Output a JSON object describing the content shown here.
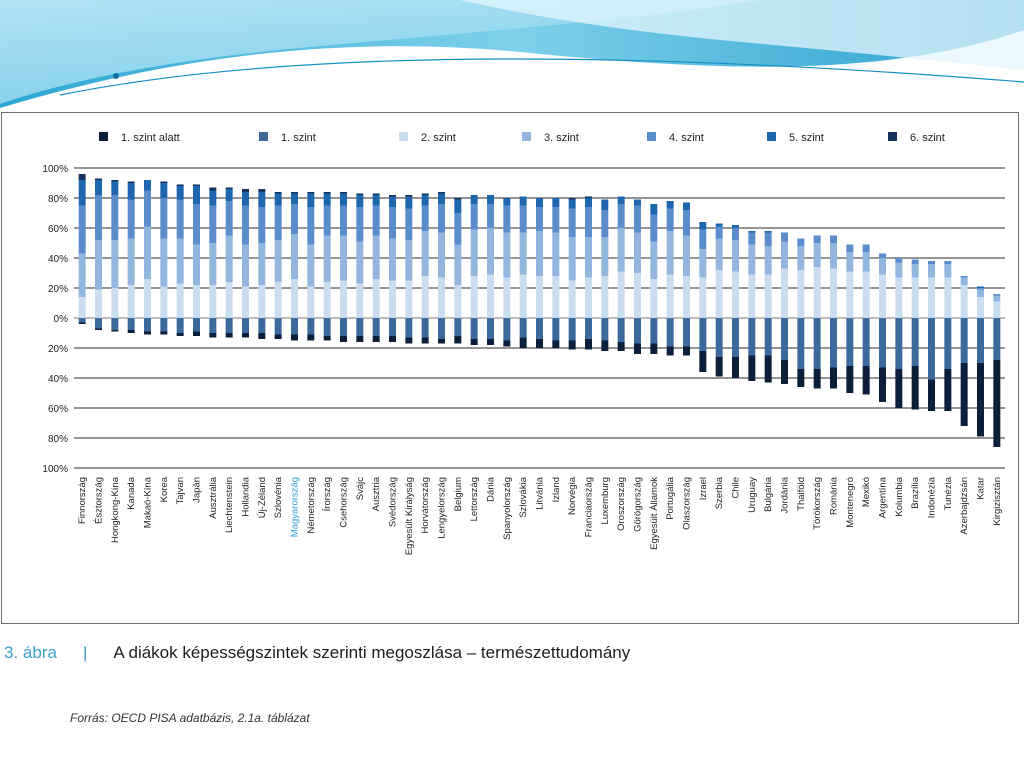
{
  "caption": {
    "number": "3. ábra",
    "separator": "|",
    "title": "A diákok képességszintek szerinti megoszlása – természettudomány"
  },
  "source": "Forrás: OECD PISA adatbázis, 2.1a. táblázat",
  "colors": {
    "below1": "#0c1f3a",
    "level1": "#3d6a9c",
    "level2": "#c9dcf0",
    "level3": "#93b6df",
    "level4": "#5b8ccb",
    "level5": "#1e66ae",
    "level6": "#15325c",
    "highlight_label": "#2a9fd6",
    "caption_accent": "#3aa0c8"
  },
  "chart_data": {
    "type": "bar",
    "stacked": "diverging",
    "legend_position": "top",
    "legend": [
      "1. szint alatt",
      "1. szint",
      "2. szint",
      "3. szint",
      "4. szint",
      "5. szint",
      "6. szint"
    ],
    "y_tick_labels": [
      "100%",
      "80%",
      "60%",
      "40%",
      "20%",
      "0%",
      "20%",
      "40%",
      "60%",
      "80%",
      "100%"
    ],
    "ylim": [
      -100,
      100
    ],
    "grid": true,
    "highlight_category": "Magyarország",
    "categories": [
      "Finnország",
      "Észtország",
      "Hongkong-Kína",
      "Kanada",
      "Makaó-Kína",
      "Korea",
      "Tajvan",
      "Japán",
      "Ausztrália",
      "Liechtenstein",
      "Hollandia",
      "Új-Zéland",
      "Szlovénia",
      "Magyarország",
      "Németország",
      "Írország",
      "Csehország",
      "Svájc",
      "Ausztria",
      "Svédország",
      "Egyesült Királyság",
      "Horvátország",
      "Lengyelország",
      "Belgium",
      "Lettország",
      "Dánia",
      "Spanyolország",
      "Szlovákia",
      "Litvánia",
      "Izland",
      "Norvégia",
      "Franciaország",
      "Luxemburg",
      "Oroszország",
      "Görögország",
      "Egyesült Államok",
      "Portugália",
      "Olaszország",
      "Izrael",
      "Szerbia",
      "Chile",
      "Uruguay",
      "Bulgária",
      "Jordánia",
      "Thaiföld",
      "Törökország",
      "Románia",
      "Montenegró",
      "Mexikó",
      "Argentína",
      "Kolumbia",
      "Brazília",
      "Indonézia",
      "Tunézia",
      "Azerbajdzsán",
      "Katar",
      "Kirgizisztán"
    ],
    "below_zero_total": [
      4,
      8,
      9,
      10,
      11,
      11,
      12,
      12,
      13,
      13,
      13,
      14,
      14,
      15,
      15,
      15,
      16,
      16,
      16,
      16,
      17,
      17,
      17,
      17,
      18,
      18,
      19,
      20,
      20,
      20,
      21,
      21,
      22,
      22,
      24,
      24,
      25,
      25,
      36,
      39,
      40,
      42,
      43,
      44,
      46,
      47,
      47,
      50,
      51,
      56,
      60,
      61,
      62,
      62,
      72,
      79,
      86
    ],
    "series": [
      {
        "name": "1. szint alatt",
        "side": "below",
        "values": [
          1,
          1,
          1,
          2,
          2,
          2,
          2,
          3,
          3,
          3,
          3,
          4,
          3,
          4,
          4,
          3,
          4,
          4,
          4,
          4,
          4,
          4,
          3,
          5,
          4,
          4,
          4,
          7,
          6,
          5,
          6,
          7,
          7,
          6,
          7,
          7,
          6,
          6,
          14,
          13,
          14,
          17,
          18,
          16,
          12,
          13,
          14,
          18,
          19,
          23,
          26,
          29,
          21,
          28,
          42,
          49,
          58
        ]
      },
      {
        "name": "1. szint",
        "side": "below",
        "values": [
          3,
          7,
          8,
          8,
          9,
          9,
          10,
          9,
          10,
          10,
          10,
          10,
          11,
          11,
          11,
          12,
          12,
          12,
          12,
          12,
          13,
          13,
          14,
          12,
          14,
          14,
          15,
          13,
          14,
          15,
          15,
          14,
          15,
          16,
          17,
          17,
          19,
          19,
          22,
          26,
          26,
          25,
          25,
          28,
          34,
          34,
          33,
          32,
          32,
          33,
          34,
          32,
          41,
          34,
          30,
          30,
          28
        ]
      },
      {
        "name": "2. szint",
        "side": "above",
        "values": [
          14,
          19,
          20,
          22,
          26,
          21,
          23,
          22,
          22,
          24,
          21,
          22,
          24,
          26,
          21,
          24,
          25,
          23,
          26,
          25,
          25,
          28,
          27,
          22,
          28,
          29,
          27,
          29,
          28,
          28,
          25,
          27,
          28,
          31,
          30,
          26,
          29,
          28,
          27,
          32,
          31,
          29,
          29,
          33,
          32,
          34,
          33,
          31,
          31,
          29,
          27,
          27,
          27,
          27,
          22,
          14,
          11
        ]
      },
      {
        "name": "3. szint",
        "side": "above",
        "values": [
          29,
          33,
          32,
          31,
          35,
          32,
          30,
          27,
          28,
          31,
          28,
          28,
          28,
          30,
          28,
          31,
          30,
          28,
          29,
          28,
          27,
          30,
          30,
          27,
          31,
          31,
          30,
          28,
          30,
          29,
          29,
          27,
          26,
          29,
          27,
          25,
          29,
          27,
          19,
          21,
          21,
          20,
          19,
          18,
          16,
          16,
          17,
          13,
          13,
          11,
          10,
          9,
          9,
          9,
          5,
          5,
          4
        ]
      },
      {
        "name": "4. szint",
        "side": "above",
        "values": [
          32,
          30,
          30,
          26,
          24,
          27,
          26,
          27,
          25,
          23,
          26,
          24,
          23,
          20,
          25,
          20,
          20,
          23,
          20,
          21,
          21,
          17,
          19,
          21,
          17,
          16,
          18,
          18,
          16,
          17,
          19,
          20,
          18,
          16,
          18,
          18,
          15,
          17,
          13,
          8,
          8,
          8,
          9,
          6,
          5,
          5,
          5,
          5,
          5,
          3,
          3,
          3,
          2,
          2,
          1,
          1,
          1
        ]
      },
      {
        "name": "5. szint",
        "side": "above",
        "values": [
          17,
          10,
          9,
          11,
          7,
          10,
          9,
          12,
          10,
          8,
          9,
          10,
          8,
          7,
          9,
          8,
          8,
          8,
          7,
          7,
          8,
          7,
          7,
          9,
          6,
          6,
          5,
          6,
          6,
          6,
          6,
          6,
          7,
          5,
          4,
          7,
          5,
          5,
          5,
          2,
          2,
          1,
          1,
          0,
          0,
          0,
          0,
          0,
          0,
          0,
          0,
          0,
          0,
          0,
          0,
          1,
          0
        ]
      },
      {
        "name": "6. szint",
        "side": "above",
        "values": [
          4,
          1,
          1,
          1,
          0,
          1,
          1,
          1,
          2,
          1,
          2,
          2,
          1,
          1,
          1,
          1,
          1,
          1,
          1,
          1,
          1,
          1,
          1,
          1,
          0,
          0,
          0,
          0,
          0,
          0,
          1,
          1,
          0,
          0,
          0,
          0,
          0,
          0,
          0,
          0,
          0,
          0,
          0,
          0,
          0,
          0,
          0,
          0,
          0,
          0,
          0,
          0,
          0,
          0,
          0,
          0,
          0
        ]
      }
    ]
  }
}
